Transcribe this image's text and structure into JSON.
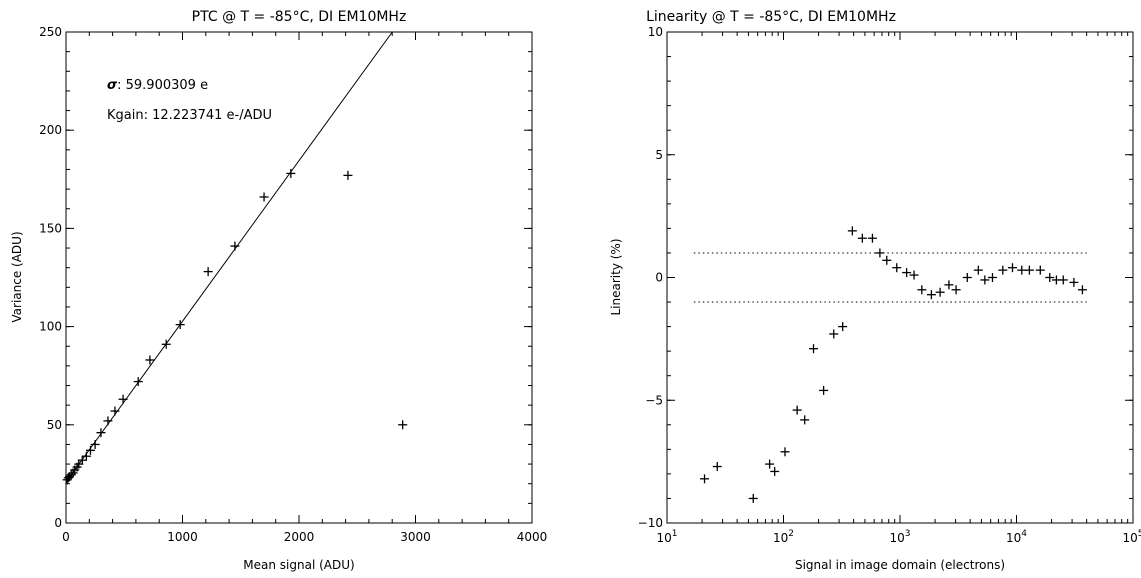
{
  "chart_data": [
    {
      "type": "scatter",
      "title": "PTC @ T = -85°C, DI EM10MHz",
      "xlabel": "Mean signal (ADU)",
      "ylabel": "Variance (ADU)",
      "xlim": [
        0,
        4000
      ],
      "ylim": [
        0,
        250
      ],
      "x_ticks": [
        0,
        1000,
        2000,
        3000,
        4000
      ],
      "y_ticks": [
        0,
        50,
        100,
        150,
        200,
        250
      ],
      "annotations": {
        "sigma_symbol": "σ",
        "sigma_text": ": 59.900309 e",
        "kgain": "Kgain: 12.223741 e-/ADU"
      },
      "fit_line": {
        "slope": 0.0818,
        "intercept": 20.9
      },
      "points": [
        [
          10,
          22
        ],
        [
          20,
          23
        ],
        [
          30,
          23.5
        ],
        [
          45,
          24.5
        ],
        [
          60,
          25.5
        ],
        [
          75,
          27
        ],
        [
          95,
          28.5
        ],
        [
          110,
          30
        ],
        [
          140,
          32
        ],
        [
          175,
          34
        ],
        [
          210,
          37
        ],
        [
          250,
          40
        ],
        [
          300,
          46
        ],
        [
          360,
          52
        ],
        [
          420,
          57
        ],
        [
          490,
          63
        ],
        [
          620,
          72
        ],
        [
          720,
          83
        ],
        [
          860,
          91
        ],
        [
          980,
          101
        ],
        [
          1220,
          128
        ],
        [
          1450,
          141
        ],
        [
          1700,
          166
        ],
        [
          1930,
          178
        ],
        [
          2420,
          177
        ],
        [
          2890,
          50
        ]
      ]
    },
    {
      "type": "scatter",
      "title": "Linearity @ T = -85°C, DI EM10MHz",
      "xlabel": "Signal in image domain (electrons)",
      "ylabel": "Linearity (%)",
      "xscale": "log",
      "xlim": [
        10,
        100000
      ],
      "ylim": [
        -10,
        10
      ],
      "x_ticks": [
        {
          "value": 10,
          "base": "10",
          "exp": "1"
        },
        {
          "value": 100,
          "base": "10",
          "exp": "2"
        },
        {
          "value": 1000,
          "base": "10",
          "exp": "3"
        },
        {
          "value": 10000,
          "base": "10",
          "exp": "4"
        },
        {
          "value": 100000,
          "base": "10",
          "exp": "5"
        }
      ],
      "y_ticks": [
        -10,
        -5,
        0,
        5,
        10
      ],
      "reference_lines": [
        1,
        -1
      ],
      "reference_xrange": [
        17,
        40000
      ],
      "points": [
        [
          21,
          -8.2
        ],
        [
          27,
          -7.7
        ],
        [
          55,
          -9.0
        ],
        [
          76,
          -7.6
        ],
        [
          84,
          -7.9
        ],
        [
          103,
          -7.1
        ],
        [
          131,
          -5.4
        ],
        [
          152,
          -5.8
        ],
        [
          181,
          -2.9
        ],
        [
          221,
          -4.6
        ],
        [
          270,
          -2.3
        ],
        [
          322,
          -2.0
        ],
        [
          390,
          1.9
        ],
        [
          475,
          1.6
        ],
        [
          580,
          1.6
        ],
        [
          672,
          1.0
        ],
        [
          770,
          0.7
        ],
        [
          938,
          0.4
        ],
        [
          1140,
          0.2
        ],
        [
          1320,
          0.1
        ],
        [
          1540,
          -0.5
        ],
        [
          1860,
          -0.7
        ],
        [
          2210,
          -0.6
        ],
        [
          2630,
          -0.3
        ],
        [
          3030,
          -0.5
        ],
        [
          3780,
          0.0
        ],
        [
          4700,
          0.3
        ],
        [
          5350,
          -0.1
        ],
        [
          6220,
          0.0
        ],
        [
          7630,
          0.3
        ],
        [
          9240,
          0.4
        ],
        [
          11100,
          0.3
        ],
        [
          12900,
          0.3
        ],
        [
          16000,
          0.3
        ],
        [
          19300,
          0.0
        ],
        [
          22000,
          -0.1
        ],
        [
          25200,
          -0.1
        ],
        [
          31100,
          -0.2
        ],
        [
          36800,
          -0.5
        ]
      ]
    }
  ]
}
